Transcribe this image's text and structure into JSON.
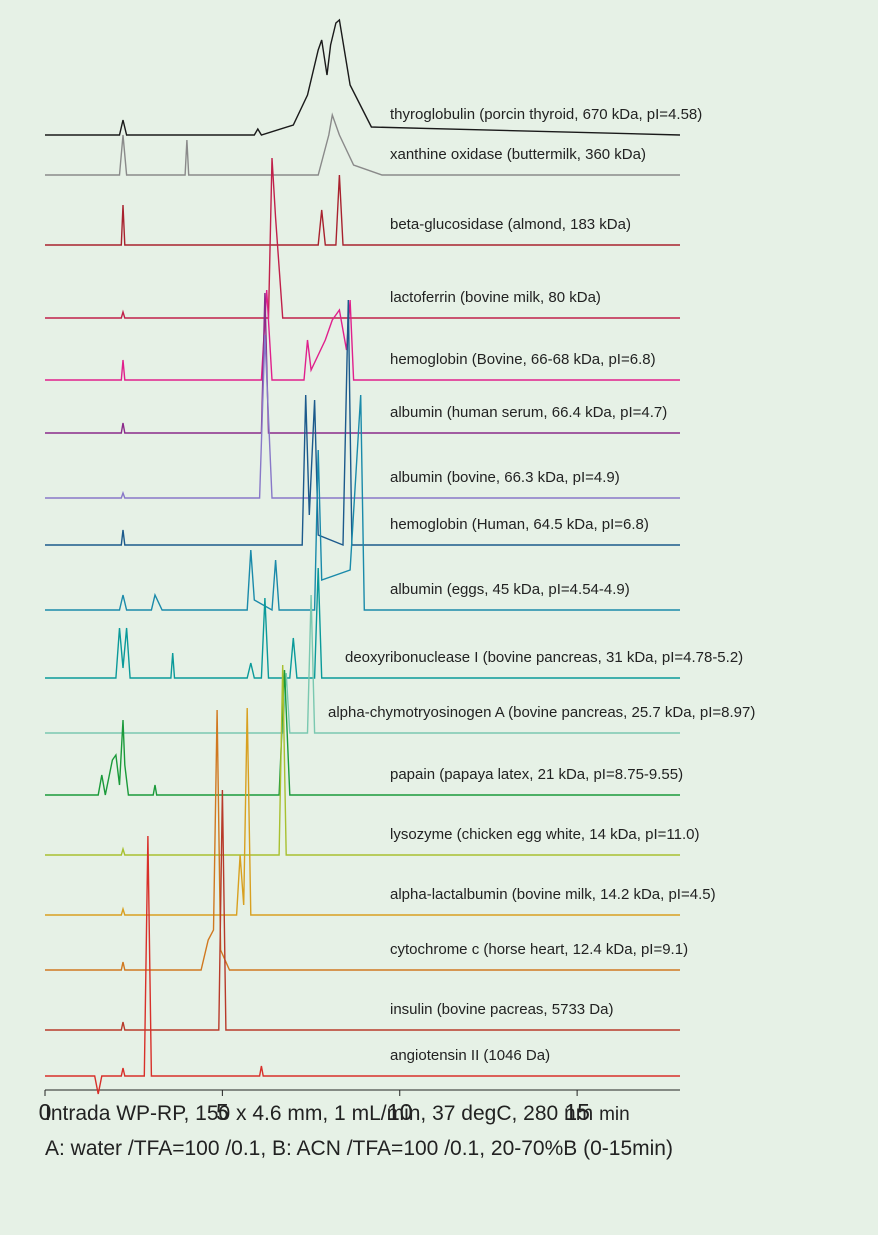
{
  "chart_data": {
    "type": "line",
    "x_label": "min",
    "xlim": [
      0,
      17.9
    ],
    "xticks": [
      0,
      5,
      10,
      15
    ],
    "series": [
      {
        "name": "thyroglobulin (porcin thyroid, 670 kDa, pI=4.58)",
        "color": "#1a1a1a",
        "x": [
          0,
          2.1,
          2.2,
          2.3,
          5.9,
          6.0,
          6.1,
          7.0,
          7.4,
          7.7,
          7.8,
          7.95,
          8.05,
          8.2,
          8.3,
          8.6,
          9.2,
          17.9
        ],
        "values": [
          0,
          0,
          15,
          0,
          0,
          6,
          0,
          10,
          40,
          85,
          95,
          60,
          90,
          112,
          115,
          50,
          8,
          0
        ]
      },
      {
        "name": "xanthine oxidase (buttermilk, 360 kDa)",
        "color": "#8a8a8a",
        "x": [
          0,
          2.1,
          2.2,
          2.3,
          3.95,
          4.0,
          4.05,
          7.7,
          8.0,
          8.1,
          8.3,
          8.7,
          9.5,
          17.9
        ],
        "values": [
          0,
          0,
          40,
          0,
          0,
          35,
          0,
          0,
          40,
          60,
          40,
          10,
          0,
          0
        ]
      },
      {
        "name": "beta-glucosidase (almond, 183 kDa)",
        "color": "#a8222e",
        "x": [
          0,
          2.15,
          2.2,
          2.25,
          7.7,
          7.8,
          7.9,
          8.2,
          8.3,
          8.4,
          17.9
        ],
        "values": [
          0,
          0,
          40,
          0,
          0,
          35,
          0,
          0,
          70,
          0,
          0
        ]
      },
      {
        "name": "lactoferrin (bovine milk, 80 kDa)",
        "color": "#c0204a",
        "x": [
          0,
          2.15,
          2.2,
          2.25,
          6.3,
          6.4,
          6.5,
          6.7,
          17.9
        ],
        "values": [
          0,
          0,
          6,
          0,
          0,
          160,
          100,
          0,
          0
        ]
      },
      {
        "name": "hemoglobin (Bovine, 66-68 kDa, pI=6.8)",
        "color": "#e0208c",
        "x": [
          0,
          2.15,
          2.2,
          2.25,
          6.1,
          6.25,
          6.4,
          7.3,
          7.4,
          7.5,
          7.9,
          8.1,
          8.3,
          8.5,
          8.6,
          8.7,
          17.9
        ],
        "values": [
          0,
          0,
          20,
          0,
          0,
          90,
          0,
          0,
          40,
          10,
          40,
          60,
          70,
          30,
          80,
          0,
          0
        ]
      },
      {
        "name": "albumin (human serum, 66.4 kDa, pI=4.7)",
        "color": "#8a2a8a",
        "x": [
          0,
          2.15,
          2.2,
          2.25,
          6.1,
          6.2,
          6.3,
          17.9
        ],
        "values": [
          0,
          0,
          10,
          0,
          0,
          140,
          0,
          0
        ]
      },
      {
        "name": "albumin (bovine, 66.3 kDa, pI=4.9)",
        "color": "#8878c8",
        "x": [
          0,
          2.15,
          2.2,
          2.25,
          6.05,
          6.2,
          6.4,
          17.9
        ],
        "values": [
          0,
          0,
          5,
          0,
          0,
          163,
          0,
          0
        ]
      },
      {
        "name": "hemoglobin (Human, 64.5 kDa, pI=6.8)",
        "color": "#1c5a8c",
        "x": [
          0,
          2.15,
          2.2,
          2.25,
          7.25,
          7.35,
          7.45,
          7.6,
          7.7,
          8.4,
          8.55,
          8.65,
          17.9
        ],
        "values": [
          0,
          0,
          15,
          0,
          0,
          150,
          30,
          145,
          10,
          0,
          245,
          0,
          0
        ]
      },
      {
        "name": "albumin (eggs, 45 kDa, pI=4.54-4.9)",
        "color": "#1a8aaa",
        "x": [
          0,
          2.1,
          2.2,
          2.3,
          3.0,
          3.1,
          3.3,
          5.7,
          5.8,
          5.9,
          6.4,
          6.5,
          6.6,
          7.6,
          7.7,
          7.8,
          8.6,
          8.9,
          9.0,
          17.9
        ],
        "values": [
          0,
          0,
          15,
          0,
          0,
          15,
          0,
          0,
          60,
          10,
          0,
          50,
          0,
          0,
          160,
          30,
          40,
          215,
          0,
          0
        ]
      },
      {
        "name": "deoxyribonuclease I (bovine pancreas, 31 kDa, pI=4.78-5.2)",
        "color": "#0a9a9a",
        "x": [
          0,
          2.0,
          2.1,
          2.2,
          2.3,
          2.4,
          3.55,
          3.6,
          3.65,
          5.7,
          5.8,
          5.9,
          6.1,
          6.2,
          6.3,
          6.9,
          7.0,
          7.1,
          7.6,
          7.7,
          7.8,
          17.9
        ],
        "values": [
          0,
          0,
          50,
          10,
          50,
          0,
          0,
          25,
          0,
          0,
          15,
          0,
          0,
          80,
          0,
          0,
          40,
          0,
          0,
          110,
          0,
          0
        ]
      },
      {
        "name": "alpha-chymotryosinogen A (bovine pancreas, 25.7 kDa, pI=8.97)",
        "color": "#7ac8b0",
        "x": [
          0,
          6.7,
          6.8,
          6.9,
          7.4,
          7.5,
          7.6,
          17.9
        ],
        "values": [
          0,
          0,
          60,
          0,
          0,
          138,
          0,
          0
        ]
      },
      {
        "name": "papain (papaya latex, 21 kDa, pI=8.75-9.55)",
        "color": "#1a9a3a",
        "x": [
          0,
          1.5,
          1.6,
          1.7,
          1.9,
          2.0,
          2.1,
          2.2,
          2.25,
          2.35,
          3.05,
          3.1,
          3.15,
          6.6,
          6.75,
          6.9,
          17.9
        ],
        "values": [
          0,
          0,
          20,
          0,
          35,
          40,
          10,
          75,
          30,
          0,
          0,
          10,
          0,
          0,
          125,
          0,
          0
        ]
      },
      {
        "name": "lysozyme (chicken egg white, 14 kDa, pI=11.0)",
        "color": "#a8c030",
        "x": [
          0,
          2.15,
          2.2,
          2.25,
          6.6,
          6.7,
          6.8,
          17.9
        ],
        "values": [
          0,
          0,
          6,
          0,
          0,
          190,
          0,
          0
        ]
      },
      {
        "name": "alpha-lactalbumin (bovine milk, 14.2 kDa, pI=4.5)",
        "color": "#d8a020",
        "x": [
          0,
          2.15,
          2.2,
          2.25,
          5.4,
          5.5,
          5.6,
          5.7,
          5.8,
          17.9
        ],
        "values": [
          0,
          0,
          6,
          0,
          0,
          60,
          10,
          207,
          0,
          0
        ]
      },
      {
        "name": "cytochrome c (horse heart, 12.4 kDa, pI=9.1)",
        "color": "#d07820",
        "x": [
          0,
          2.15,
          2.2,
          2.25,
          4.4,
          4.6,
          4.75,
          4.85,
          4.95,
          5.2,
          17.9
        ],
        "values": [
          0,
          0,
          8,
          0,
          0,
          30,
          40,
          260,
          20,
          0,
          0
        ]
      },
      {
        "name": "insulin (bovine pacreas, 5733 Da)",
        "color": "#b83a2a",
        "x": [
          0,
          2.15,
          2.2,
          2.25,
          4.9,
          5.0,
          5.1,
          17.9
        ],
        "values": [
          0,
          0,
          8,
          0,
          0,
          240,
          0,
          0
        ]
      },
      {
        "name": "angiotensin II (1046 Da)",
        "color": "#d8302a",
        "x": [
          0,
          1.4,
          1.5,
          1.6,
          2.15,
          2.2,
          2.25,
          2.8,
          2.9,
          3.0,
          6.05,
          6.1,
          6.15,
          17.9
        ],
        "values": [
          0,
          0,
          -18,
          0,
          0,
          8,
          0,
          0,
          240,
          0,
          0,
          10,
          0,
          0
        ]
      }
    ]
  },
  "footer": [
    "Intrada WP-RP, 150 x 4.6 mm, 1 mL/min, 37 degC, 280 nm",
    "A: water /TFA=100 /0.1, B: ACN /TFA=100 /0.1, 20-70%B (0-15min)"
  ]
}
